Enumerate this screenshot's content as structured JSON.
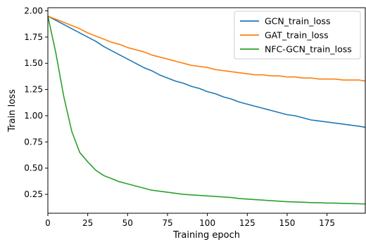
{
  "chart_data": {
    "type": "line",
    "title": "",
    "xlabel": "Training epoch",
    "ylabel": "Train loss",
    "xlim": [
      0,
      199
    ],
    "ylim": [
      0.07,
      2.03
    ],
    "xticks": [
      0,
      25,
      50,
      75,
      100,
      125,
      150,
      175
    ],
    "yticks": [
      0.25,
      0.5,
      0.75,
      1.0,
      1.25,
      1.5,
      1.75,
      2.0
    ],
    "xtick_labels": [
      "0",
      "25",
      "50",
      "75",
      "100",
      "125",
      "150",
      "175"
    ],
    "ytick_labels": [
      "0.25",
      "0.50",
      "0.75",
      "1.00",
      "1.25",
      "1.50",
      "1.75",
      "2.00"
    ],
    "grid": false,
    "legend": "top-right",
    "x": [
      0,
      5,
      10,
      15,
      20,
      25,
      30,
      35,
      40,
      45,
      50,
      55,
      60,
      65,
      70,
      75,
      80,
      85,
      90,
      95,
      100,
      105,
      110,
      115,
      120,
      125,
      130,
      135,
      140,
      145,
      150,
      155,
      160,
      165,
      170,
      175,
      180,
      185,
      190,
      195,
      199
    ],
    "series": [
      {
        "name": "GCN_train_loss",
        "color": "#1f77b4",
        "values": [
          1.95,
          1.91,
          1.87,
          1.83,
          1.79,
          1.75,
          1.71,
          1.66,
          1.62,
          1.58,
          1.54,
          1.5,
          1.46,
          1.43,
          1.39,
          1.36,
          1.33,
          1.31,
          1.28,
          1.26,
          1.23,
          1.21,
          1.18,
          1.16,
          1.13,
          1.11,
          1.09,
          1.07,
          1.05,
          1.03,
          1.01,
          1.0,
          0.98,
          0.96,
          0.95,
          0.94,
          0.93,
          0.92,
          0.91,
          0.9,
          0.89
        ]
      },
      {
        "name": "GAT_train_loss",
        "color": "#ff7f0e",
        "values": [
          1.95,
          1.92,
          1.89,
          1.86,
          1.83,
          1.79,
          1.76,
          1.73,
          1.7,
          1.68,
          1.65,
          1.63,
          1.61,
          1.58,
          1.56,
          1.54,
          1.52,
          1.5,
          1.48,
          1.47,
          1.46,
          1.44,
          1.43,
          1.42,
          1.41,
          1.4,
          1.39,
          1.39,
          1.38,
          1.38,
          1.37,
          1.37,
          1.36,
          1.36,
          1.35,
          1.35,
          1.35,
          1.34,
          1.34,
          1.34,
          1.33
        ]
      },
      {
        "name": "NFC-GCN_train_loss",
        "color": "#2ca02c",
        "values": [
          1.95,
          1.6,
          1.18,
          0.85,
          0.65,
          0.56,
          0.48,
          0.43,
          0.4,
          0.37,
          0.35,
          0.33,
          0.31,
          0.29,
          0.28,
          0.27,
          0.26,
          0.25,
          0.245,
          0.24,
          0.235,
          0.23,
          0.225,
          0.22,
          0.21,
          0.205,
          0.2,
          0.195,
          0.19,
          0.185,
          0.18,
          0.178,
          0.175,
          0.172,
          0.17,
          0.168,
          0.166,
          0.164,
          0.162,
          0.16,
          0.158
        ]
      }
    ]
  }
}
